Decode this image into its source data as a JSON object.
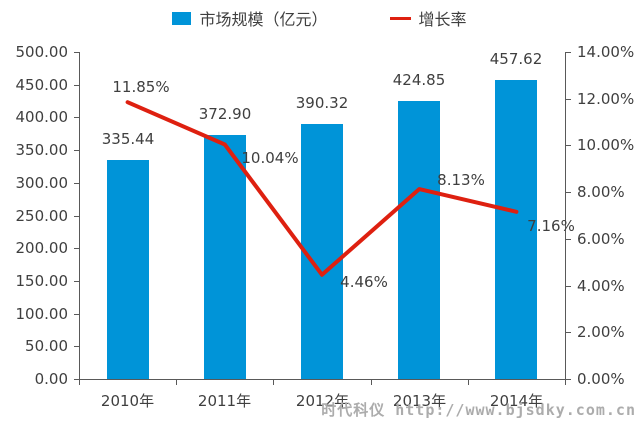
{
  "legend": [
    {
      "label": "市场规模（亿元）",
      "type": "bar",
      "color": "#0094D8"
    },
    {
      "label": "增长率",
      "type": "line",
      "color": "#DE2010"
    }
  ],
  "watermark": "时代科仪 http://www.bjsdky.com.cn",
  "colors": {
    "bar": "#0094D8",
    "line": "#DE2010",
    "axis": "#595959",
    "text": "#3F3F3F",
    "watermark": "#ACACAC",
    "background": "#FFFFFF"
  },
  "chart_data": {
    "type": "bar",
    "subtype": "bar+line combo",
    "categories": [
      "2010年",
      "2011年",
      "2012年",
      "2013年",
      "2014年"
    ],
    "series": [
      {
        "name": "市场规模（亿元）",
        "type": "bar",
        "axis": "left",
        "color": "#0094D8",
        "values": [
          335.44,
          372.9,
          390.32,
          424.85,
          457.62
        ],
        "labels": [
          "335.44",
          "372.90",
          "390.32",
          "424.85",
          "457.62"
        ]
      },
      {
        "name": "增长率",
        "type": "line",
        "axis": "right",
        "color": "#DE2010",
        "values": [
          11.85,
          10.04,
          4.46,
          8.13,
          7.16
        ],
        "labels": [
          "11.85%",
          "10.04%",
          "4.46%",
          "8.13%",
          "7.16%"
        ]
      }
    ],
    "left_axis": {
      "min": 0,
      "max": 500,
      "step": 50,
      "tick_labels": [
        "0.00",
        "50.00",
        "100.00",
        "150.00",
        "200.00",
        "250.00",
        "300.00",
        "350.00",
        "400.00",
        "450.00",
        "500.00"
      ]
    },
    "right_axis": {
      "min": 0,
      "max": 14,
      "step": 2,
      "tick_labels": [
        "0.00%",
        "2.00%",
        "4.00%",
        "6.00%",
        "8.00%",
        "10.00%",
        "12.00%",
        "14.00%"
      ]
    },
    "grid": false,
    "legend_position": "top"
  }
}
